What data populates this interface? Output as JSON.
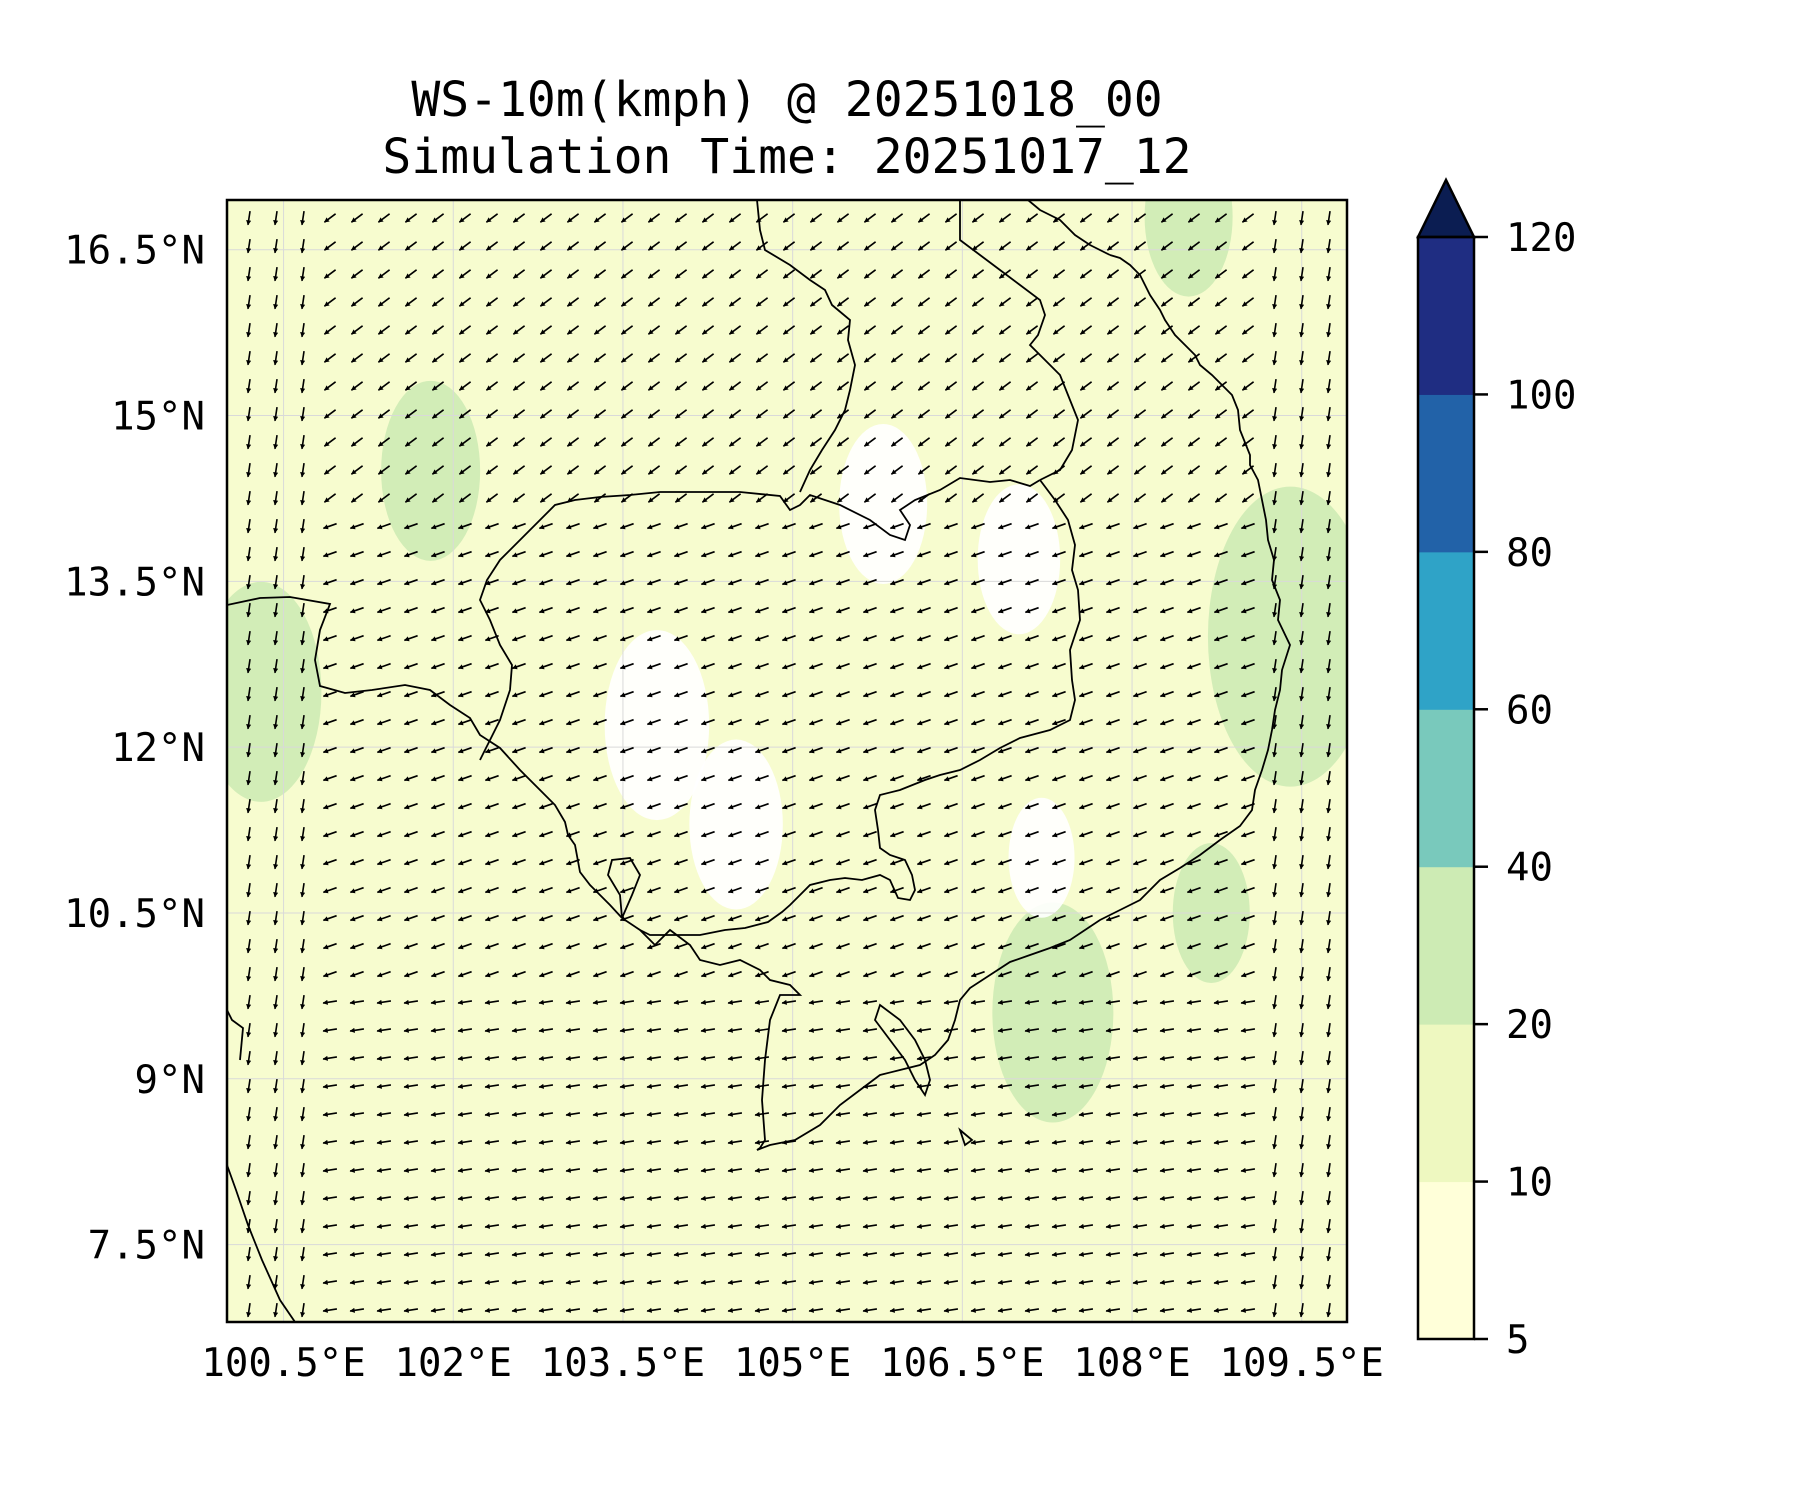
{
  "title": {
    "line1": "WS-10m(kmph) @ 20251018_00",
    "line2": "Simulation Time: 20251017_12"
  },
  "map": {
    "lon_range": [
      100.0,
      109.9
    ],
    "lat_range": [
      6.8,
      16.95
    ],
    "lon_ticks": [
      {
        "value": 100.5,
        "label": "100.5°E"
      },
      {
        "value": 102.0,
        "label": "102°E"
      },
      {
        "value": 103.5,
        "label": "103.5°E"
      },
      {
        "value": 105.0,
        "label": "105°E"
      },
      {
        "value": 106.5,
        "label": "106.5°E"
      },
      {
        "value": 108.0,
        "label": "108°E"
      },
      {
        "value": 109.5,
        "label": "109.5°E"
      }
    ],
    "lat_ticks": [
      {
        "value": 16.5,
        "label": "16.5°N"
      },
      {
        "value": 15.0,
        "label": "15°N"
      },
      {
        "value": 13.5,
        "label": "13.5°N"
      },
      {
        "value": 12.0,
        "label": "12°N"
      },
      {
        "value": 10.5,
        "label": "10.5°N"
      },
      {
        "value": 9.0,
        "label": "9°N"
      },
      {
        "value": 7.5,
        "label": "7.5°N"
      }
    ],
    "gridlines": true,
    "background_fill": "#f7fccf"
  },
  "colorbar": {
    "levels": [
      {
        "from": 5,
        "to": 10,
        "color": "#ffffd9"
      },
      {
        "from": 10,
        "to": 20,
        "color": "#eef8c0"
      },
      {
        "from": 20,
        "to": 40,
        "color": "#cdebb4"
      },
      {
        "from": 40,
        "to": 60,
        "color": "#79c9bc"
      },
      {
        "from": 60,
        "to": 80,
        "color": "#2fa3c7"
      },
      {
        "from": 80,
        "to": 100,
        "color": "#2262a8"
      },
      {
        "from": 100,
        "to": 120,
        "color": "#1f2d82"
      }
    ],
    "extend_color": "#0b1d52",
    "tick_labels": [
      "5",
      "10",
      "20",
      "40",
      "60",
      "80",
      "100",
      "120"
    ]
  },
  "chart_data": {
    "type": "heatmap",
    "title": "WS-10m(kmph) @ 20251018_00",
    "subtitle": "Simulation Time: 20251017_12",
    "xlabel": "",
    "ylabel": "",
    "xlim": [
      100.0,
      109.9
    ],
    "ylim": [
      6.8,
      16.95
    ],
    "units": "kmph",
    "grid": true,
    "wind_speed_regions": [
      {
        "lon": 100.3,
        "lat": 12.5,
        "speed": 22
      },
      {
        "lon": 108.7,
        "lat": 10.5,
        "speed": 24
      },
      {
        "lon": 109.4,
        "lat": 13.0,
        "speed": 25
      },
      {
        "lon": 107.3,
        "lat": 9.6,
        "speed": 23
      },
      {
        "lon": 101.8,
        "lat": 14.5,
        "speed": 21
      },
      {
        "lon": 108.5,
        "lat": 16.8,
        "speed": 22
      },
      {
        "lon": 103.8,
        "lat": 12.2,
        "speed": 4
      },
      {
        "lon": 104.5,
        "lat": 11.3,
        "speed": 4
      },
      {
        "lon": 105.8,
        "lat": 14.2,
        "speed": 4
      },
      {
        "lon": 107.0,
        "lat": 13.7,
        "speed": 4
      },
      {
        "lon": 107.2,
        "lat": 11.0,
        "speed": 4
      }
    ],
    "wind_direction": "predominantly from the east / northeast, turning southward along the coasts"
  }
}
